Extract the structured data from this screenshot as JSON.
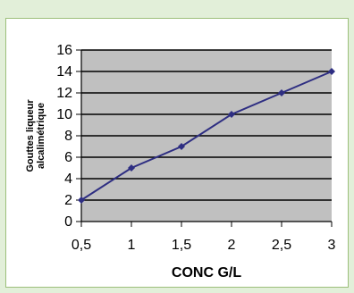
{
  "chart_data": {
    "type": "line",
    "x": [
      0.5,
      1,
      1.5,
      2,
      2.5,
      3
    ],
    "x_tick_labels": [
      "0,5",
      "1",
      "1,5",
      "2",
      "2,5",
      "3"
    ],
    "y_ticks": [
      0,
      2,
      4,
      6,
      8,
      10,
      12,
      14,
      16
    ],
    "series": [
      {
        "values": [
          2,
          5,
          7,
          10,
          12,
          14
        ]
      }
    ],
    "title": "",
    "xlabel": "CONC G/L",
    "ylabel_line1": "Gouttes liqueur",
    "ylabel_line2": "alcalimétrique",
    "ylim": [
      0,
      16
    ],
    "xlim": [
      0.5,
      3
    ],
    "grid": "horizontal",
    "legend": "none",
    "colors": {
      "plot_background": "#c0c0c0",
      "line": "#2e2e82",
      "marker": "#2e2e82",
      "gridline": "#000000",
      "page_background": "#e2efd9",
      "panel_border": "#9cbf7a"
    }
  }
}
